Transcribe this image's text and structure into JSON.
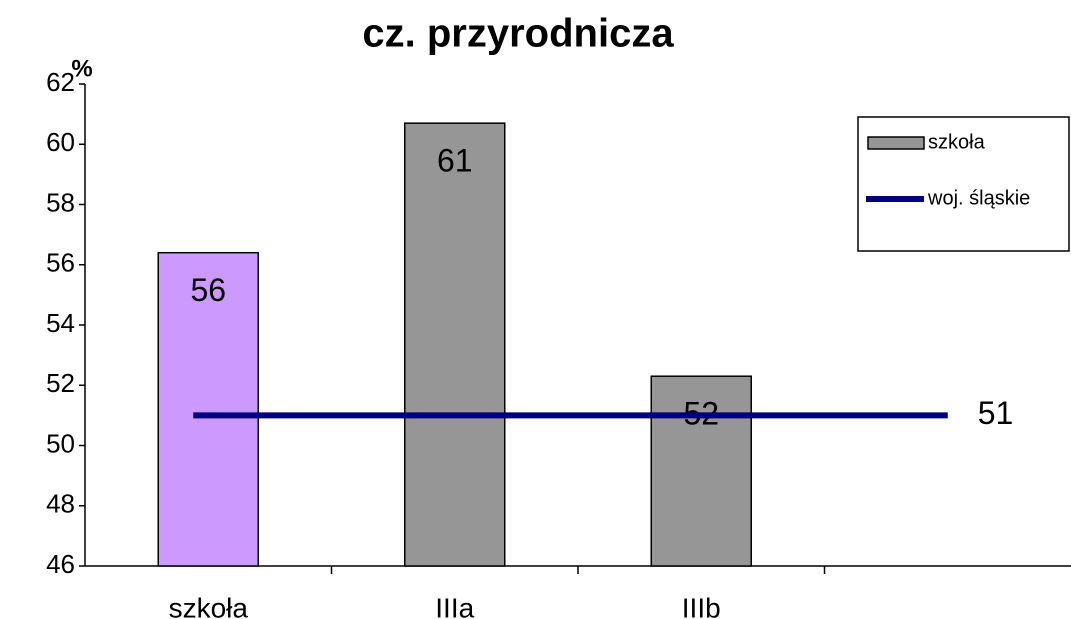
{
  "chart_data": {
    "type": "bar",
    "title": "cz. przyrodnicza",
    "y_label": "%",
    "categories": [
      "szkoła",
      "IIIa",
      "IIIb",
      null
    ],
    "series": [
      {
        "name": "szkoła",
        "type": "bar",
        "color": "#969696",
        "colors": [
          "#cc99ff",
          "#969696",
          "#969696",
          null
        ],
        "values": [
          56.4,
          60.7,
          52.3,
          null
        ],
        "value_labels": [
          "56",
          "61",
          "52",
          null
        ]
      },
      {
        "name": "woj. śląskie",
        "type": "line",
        "color": "#000080",
        "values": [
          51,
          51,
          51,
          51
        ],
        "value_labels": [
          null,
          null,
          null,
          "51"
        ]
      }
    ],
    "ylim": [
      46,
      62
    ],
    "yticks": [
      46,
      48,
      50,
      52,
      54,
      56,
      58,
      60,
      62
    ],
    "grid": false,
    "legend": "upper right"
  }
}
